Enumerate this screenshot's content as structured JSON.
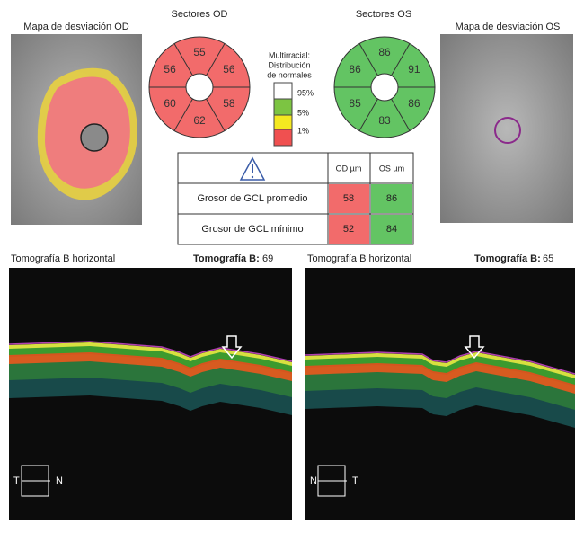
{
  "od_map": {
    "title": "Mapa de desviación OD"
  },
  "os_map": {
    "title": "Mapa de desviación OS"
  },
  "od_sectors": {
    "title": "Sectores OD",
    "color": "#f26b6b",
    "values": [
      55,
      56,
      58,
      62,
      60,
      56
    ]
  },
  "os_sectors": {
    "title": "Sectores OS",
    "color": "#63c463",
    "values": [
      86,
      91,
      86,
      83,
      85,
      86
    ]
  },
  "legend": {
    "title": [
      "Multirracial:",
      "Distribución",
      "de normales"
    ],
    "entries": [
      "95%",
      "5%",
      "1%"
    ]
  },
  "table": {
    "headers": [
      "OD µm",
      "OS µm"
    ],
    "rows": [
      [
        "Grosor de GCL promedio",
        58,
        86
      ],
      [
        "Grosor de GCL mínimo",
        52,
        84
      ]
    ]
  },
  "scans": [
    {
      "label": "Tomografía B horizontal",
      "scan_label": "Tomografía B:",
      "scan_number": 69,
      "left": "T",
      "right": "N"
    },
    {
      "label": "Tomografía B horizontal",
      "scan_label": "Tomografía B:",
      "scan_number": 65,
      "left": "N",
      "right": "T"
    }
  ]
}
